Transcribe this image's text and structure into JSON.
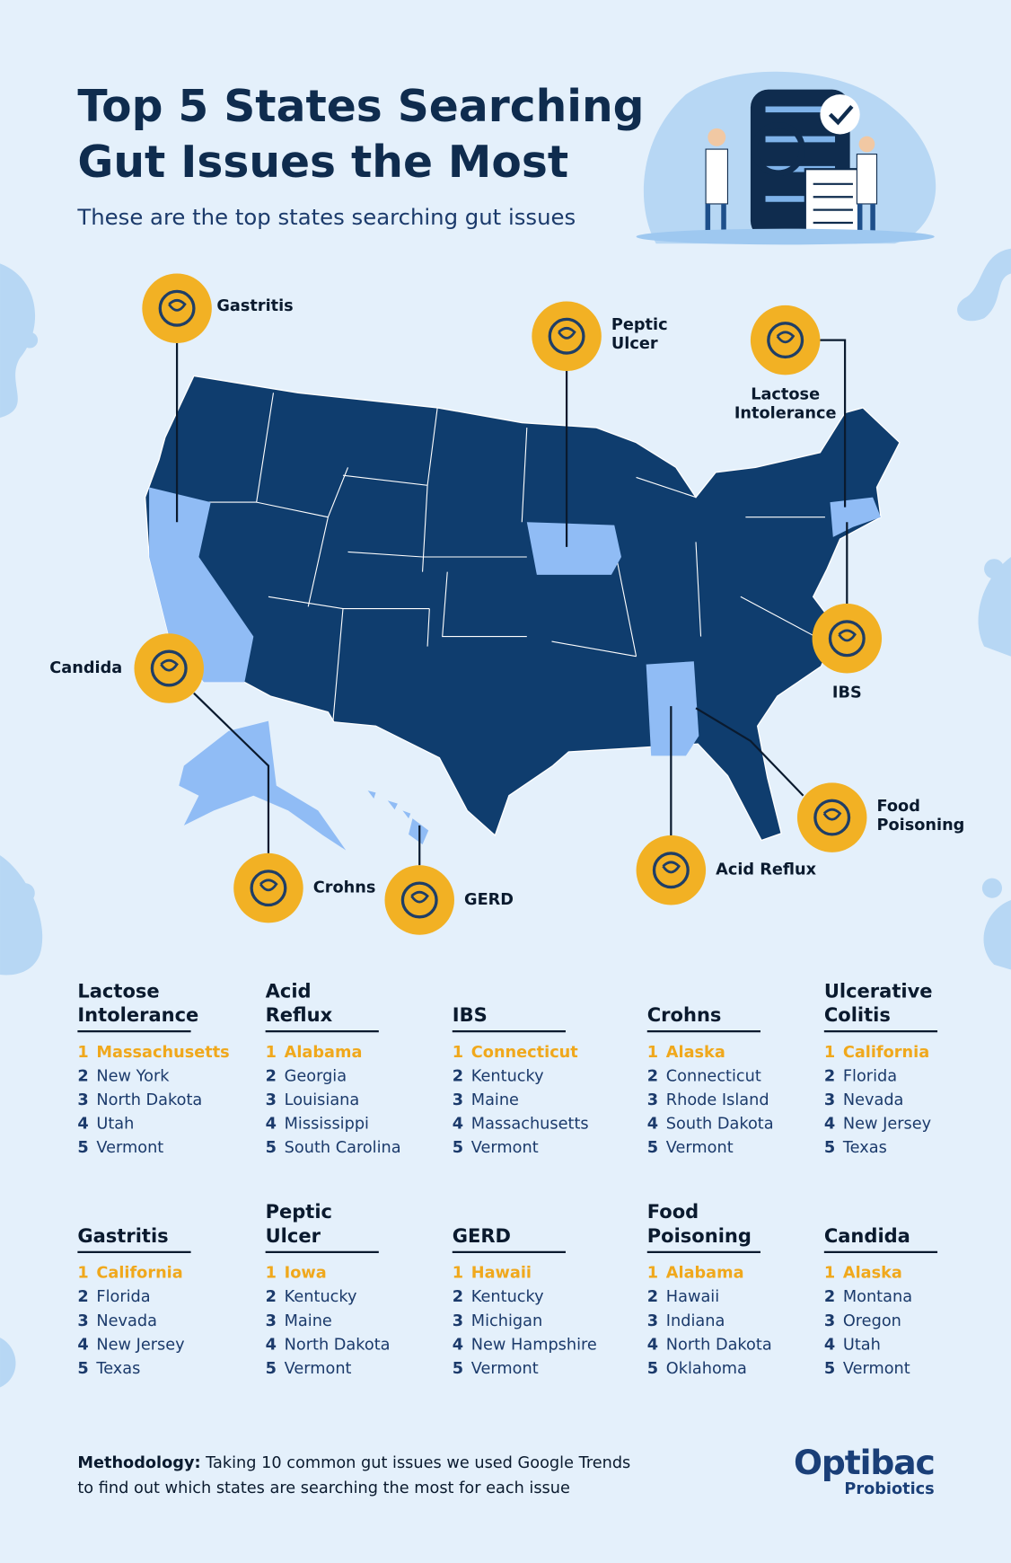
{
  "header": {
    "title": [
      "Top 5 States Searching",
      "Gut Issues the Most"
    ],
    "subtitle": "These are the top states searching gut issues"
  },
  "map": {
    "callouts": [
      {
        "label": [
          "Gastritis"
        ]
      },
      {
        "label": [
          "Peptic",
          "Ulcer"
        ]
      },
      {
        "label": [
          "Lactose",
          "Intolerance"
        ]
      },
      {
        "label": [
          "IBS"
        ]
      },
      {
        "label": [
          "Candida"
        ]
      },
      {
        "label": [
          "Crohns"
        ]
      },
      {
        "label": [
          "GERD"
        ]
      },
      {
        "label": [
          "Acid Reflux"
        ]
      },
      {
        "label": [
          "Food",
          "Poisoning"
        ]
      }
    ]
  },
  "lists": [
    {
      "title": [
        "Lactose",
        "Intolerance"
      ],
      "items": [
        {
          "rank": 1,
          "state": "Massachusetts"
        },
        {
          "rank": 2,
          "state": "New York"
        },
        {
          "rank": 3,
          "state": "North Dakota"
        },
        {
          "rank": 4,
          "state": "Utah"
        },
        {
          "rank": 5,
          "state": "Vermont"
        }
      ]
    },
    {
      "title": [
        "Acid",
        "Reflux"
      ],
      "items": [
        {
          "rank": 1,
          "state": "Alabama"
        },
        {
          "rank": 2,
          "state": "Georgia"
        },
        {
          "rank": 3,
          "state": "Louisiana"
        },
        {
          "rank": 4,
          "state": "Mississippi"
        },
        {
          "rank": 5,
          "state": "South Carolina"
        }
      ]
    },
    {
      "title": [
        "IBS"
      ],
      "items": [
        {
          "rank": 1,
          "state": "Connecticut"
        },
        {
          "rank": 2,
          "state": "Kentucky"
        },
        {
          "rank": 3,
          "state": "Maine"
        },
        {
          "rank": 4,
          "state": "Massachusetts"
        },
        {
          "rank": 5,
          "state": "Vermont"
        }
      ]
    },
    {
      "title": [
        "Crohns"
      ],
      "items": [
        {
          "rank": 1,
          "state": "Alaska"
        },
        {
          "rank": 2,
          "state": "Connecticut"
        },
        {
          "rank": 3,
          "state": "Rhode Island"
        },
        {
          "rank": 4,
          "state": "South Dakota"
        },
        {
          "rank": 5,
          "state": "Vermont"
        }
      ]
    },
    {
      "title": [
        "Ulcerative",
        "Colitis"
      ],
      "items": [
        {
          "rank": 1,
          "state": "California"
        },
        {
          "rank": 2,
          "state": "Florida"
        },
        {
          "rank": 3,
          "state": "Nevada"
        },
        {
          "rank": 4,
          "state": "New Jersey"
        },
        {
          "rank": 5,
          "state": "Texas"
        }
      ]
    },
    {
      "title": [
        "Gastritis"
      ],
      "items": [
        {
          "rank": 1,
          "state": "California"
        },
        {
          "rank": 2,
          "state": "Florida"
        },
        {
          "rank": 3,
          "state": "Nevada"
        },
        {
          "rank": 4,
          "state": "New Jersey"
        },
        {
          "rank": 5,
          "state": "Texas"
        }
      ]
    },
    {
      "title": [
        "Peptic",
        "Ulcer"
      ],
      "items": [
        {
          "rank": 1,
          "state": "Iowa"
        },
        {
          "rank": 2,
          "state": "Kentucky"
        },
        {
          "rank": 3,
          "state": "Maine"
        },
        {
          "rank": 4,
          "state": "North Dakota"
        },
        {
          "rank": 5,
          "state": "Vermont"
        }
      ]
    },
    {
      "title": [
        "GERD"
      ],
      "items": [
        {
          "rank": 1,
          "state": "Hawaii"
        },
        {
          "rank": 2,
          "state": "Kentucky"
        },
        {
          "rank": 3,
          "state": "Michigan"
        },
        {
          "rank": 4,
          "state": "New Hampshire"
        },
        {
          "rank": 5,
          "state": "Vermont"
        }
      ]
    },
    {
      "title": [
        "Food",
        "Poisoning"
      ],
      "items": [
        {
          "rank": 1,
          "state": "Alabama"
        },
        {
          "rank": 2,
          "state": "Hawaii"
        },
        {
          "rank": 3,
          "state": "Indiana"
        },
        {
          "rank": 4,
          "state": "North Dakota"
        },
        {
          "rank": 5,
          "state": "Oklahoma"
        }
      ]
    },
    {
      "title": [
        "Candida"
      ],
      "items": [
        {
          "rank": 1,
          "state": "Alaska"
        },
        {
          "rank": 2,
          "state": "Montana"
        },
        {
          "rank": 3,
          "state": "Oregon"
        },
        {
          "rank": 4,
          "state": "Utah"
        },
        {
          "rank": 5,
          "state": "Vermont"
        }
      ]
    }
  ],
  "methodology": {
    "label": "Methodology:",
    "text": [
      "Taking 10 common gut issues we used Google Trends",
      "to find out which states are searching the most for each issue"
    ]
  },
  "logo": {
    "name": "Optibac",
    "sub": "Probiotics"
  }
}
